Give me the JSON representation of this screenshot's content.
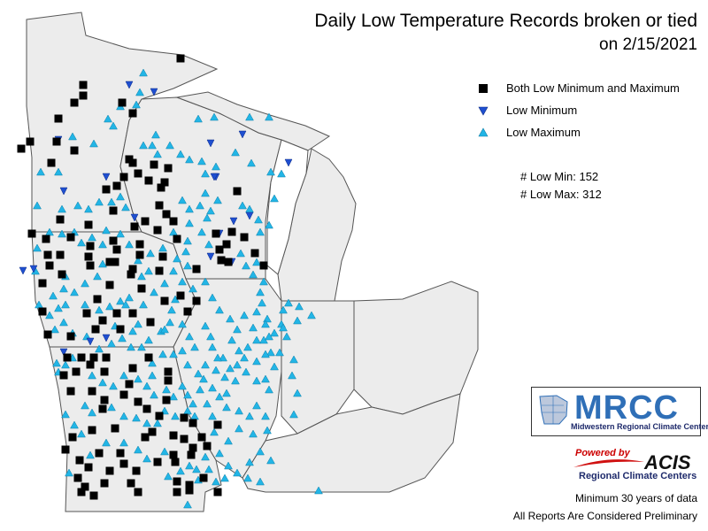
{
  "title": "Daily Low Temperature Records broken or tied",
  "subtitle": "on 2/15/2021",
  "legend": {
    "both": "Both Low Minimum and Maximum",
    "min": "Low Minimum",
    "max": "Low Maximum"
  },
  "counts": {
    "low_min": "# Low Min: 152",
    "low_max": "# Low Max: 312"
  },
  "logo": {
    "mrcc": "MRCC",
    "mrcc_sub": "Midwestern Regional Climate Center",
    "powered_by": "Powered by",
    "acis": "ACIS",
    "rcc": "Regional Climate Centers"
  },
  "footer": {
    "line1": "Minimum 30 years of data",
    "line2": "All Reports Are Considered Preliminary"
  },
  "colors": {
    "land": "#ececec",
    "border": "#555555",
    "both": "#000000",
    "min": "#1f4fd0",
    "max": "#22b5e6"
  },
  "icons": {
    "both": "black-square-icon",
    "min": "blue-down-triangle-icon",
    "max": "cyan-up-triangle-icon"
  }
}
